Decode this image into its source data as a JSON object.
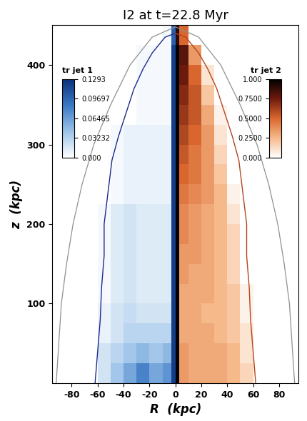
{
  "chart_data": {
    "type": "heatmap",
    "title": "I2 at t=22.8 Myr",
    "xlabel": "R  (kpc)",
    "ylabel": "z  (kpc)",
    "xlim": [
      -95,
      95
    ],
    "ylim": [
      0,
      450
    ],
    "xticks": [
      -80,
      -60,
      -40,
      -20,
      0,
      20,
      40,
      60,
      80
    ],
    "yticks": [
      100,
      200,
      300,
      400
    ],
    "z_edges": [
      0,
      25,
      50,
      75,
      100,
      125,
      150,
      175,
      200,
      225,
      250,
      275,
      300,
      325,
      350,
      375,
      400,
      425,
      450
    ],
    "tracers": [
      {
        "name": "tr jet 1",
        "R_edges": [
          -100,
          -80,
          -70,
          -60,
          -50,
          -40,
          -30,
          -20,
          -10,
          -3,
          0
        ],
        "colorbar_range": [
          0,
          0.1293
        ],
        "colorbar_ticks": [
          {
            "value": 0,
            "label": "0.000"
          },
          0.03232,
          0.06465,
          0.09697,
          0.1293
        ],
        "contour_color": "#1c2a8c",
        "contour": {
          "R": [
            0,
            -8,
            -18,
            -25,
            -32,
            -38,
            -44,
            -49,
            -52,
            -55,
            -55,
            -57,
            -58,
            -60,
            -62
          ],
          "z": [
            440,
            435,
            415,
            395,
            370,
            340,
            310,
            280,
            240,
            200,
            160,
            120,
            80,
            40,
            0
          ]
        },
        "cells": [
          [
            0,
            0,
            0,
            0.02,
            0.04,
            0.06,
            0.08,
            0.06,
            0.07,
            0.12
          ],
          [
            0,
            0,
            0,
            0.02,
            0.03,
            0.04,
            0.05,
            0.04,
            0.05,
            0.12
          ],
          [
            0,
            0,
            0,
            0.01,
            0.02,
            0.03,
            0.03,
            0.03,
            0.03,
            0.12
          ],
          [
            0,
            0,
            0,
            0.01,
            0.02,
            0.025,
            0.02,
            0.02,
            0.02,
            0.12
          ],
          [
            0,
            0,
            0,
            0.005,
            0.015,
            0.02,
            0.015,
            0.015,
            0.015,
            0.12
          ],
          [
            0,
            0,
            0,
            0.005,
            0.015,
            0.02,
            0.015,
            0.015,
            0.015,
            0.12
          ],
          [
            0,
            0,
            0,
            0.005,
            0.015,
            0.02,
            0.015,
            0.015,
            0.015,
            0.12
          ],
          [
            0,
            0,
            0,
            0.005,
            0.015,
            0.02,
            0.015,
            0.015,
            0.015,
            0.12
          ],
          [
            0,
            0,
            0,
            0.005,
            0.015,
            0.02,
            0.015,
            0.015,
            0.015,
            0.12
          ],
          [
            0,
            0,
            0,
            0,
            0.005,
            0.01,
            0.01,
            0.01,
            0.01,
            0.12
          ],
          [
            0,
            0,
            0,
            0,
            0.005,
            0.01,
            0.01,
            0.01,
            0.01,
            0.12
          ],
          [
            0,
            0,
            0,
            0,
            0.005,
            0.01,
            0.01,
            0.01,
            0.01,
            0.12
          ],
          [
            0,
            0,
            0,
            0,
            0.005,
            0.01,
            0.01,
            0.01,
            0.01,
            0.12
          ],
          [
            0,
            0,
            0,
            0,
            0,
            0,
            0.005,
            0.005,
            0.005,
            0.12
          ],
          [
            0,
            0,
            0,
            0,
            0,
            0,
            0.005,
            0.005,
            0.005,
            0.12
          ],
          [
            0,
            0,
            0,
            0,
            0,
            0,
            0.005,
            0.005,
            0.005,
            0.12
          ],
          [
            0,
            0,
            0,
            0,
            0,
            0,
            0.005,
            0.005,
            0.005,
            0.12
          ],
          [
            0,
            0,
            0,
            0,
            0,
            0,
            0,
            0,
            0.005,
            0.1
          ]
        ]
      },
      {
        "name": "tr jet 2",
        "R_edges": [
          0,
          3,
          10,
          20,
          30,
          40,
          50,
          60,
          70,
          80,
          100
        ],
        "colorbar_range": [
          0,
          1.0
        ],
        "colorbar_ticks": [
          {
            "value": 0,
            "label": "0.000"
          },
          {
            "value": 0.25,
            "label": "0.2500"
          },
          {
            "value": 0.5,
            "label": "0.5000"
          },
          {
            "value": 0.75,
            "label": "0.7500"
          },
          {
            "value": 1.0,
            "label": "1.000"
          }
        ],
        "contour_color": "#b5451b",
        "contour": {
          "R": [
            0,
            8,
            18,
            25,
            32,
            38,
            44,
            49,
            52,
            55,
            55,
            57,
            58,
            60,
            62
          ],
          "z": [
            440,
            435,
            415,
            395,
            370,
            340,
            310,
            280,
            240,
            200,
            160,
            120,
            80,
            40,
            0
          ]
        },
        "cells": [
          [
            1.0,
            0.35,
            0.3,
            0.3,
            0.3,
            0.25,
            0.15,
            0,
            0,
            0
          ],
          [
            1.0,
            0.35,
            0.3,
            0.3,
            0.3,
            0.25,
            0.1,
            0,
            0,
            0
          ],
          [
            1.0,
            0.3,
            0.3,
            0.3,
            0.25,
            0.2,
            0.1,
            0,
            0,
            0
          ],
          [
            1.0,
            0.3,
            0.3,
            0.25,
            0.25,
            0.2,
            0.05,
            0,
            0,
            0
          ],
          [
            1.0,
            0.3,
            0.3,
            0.3,
            0.25,
            0.2,
            0.05,
            0,
            0,
            0
          ],
          [
            1.0,
            0.35,
            0.3,
            0.3,
            0.25,
            0.15,
            0,
            0,
            0,
            0
          ],
          [
            1.0,
            0.35,
            0.35,
            0.3,
            0.25,
            0.15,
            0,
            0,
            0,
            0
          ],
          [
            1.0,
            0.4,
            0.35,
            0.3,
            0.25,
            0.15,
            0,
            0,
            0,
            0
          ],
          [
            1.0,
            0.4,
            0.35,
            0.3,
            0.25,
            0.1,
            0,
            0,
            0,
            0
          ],
          [
            1.0,
            0.45,
            0.4,
            0.35,
            0.25,
            0.05,
            0,
            0,
            0,
            0
          ],
          [
            1.0,
            0.5,
            0.45,
            0.35,
            0.2,
            0,
            0,
            0,
            0,
            0
          ],
          [
            1.0,
            0.55,
            0.45,
            0.35,
            0.15,
            0,
            0,
            0,
            0,
            0
          ],
          [
            1.0,
            0.6,
            0.5,
            0.35,
            0.1,
            0,
            0,
            0,
            0,
            0
          ],
          [
            1.0,
            0.65,
            0.55,
            0.3,
            0.05,
            0,
            0,
            0,
            0,
            0
          ],
          [
            1.0,
            0.7,
            0.55,
            0.2,
            0,
            0,
            0,
            0,
            0,
            0
          ],
          [
            1.0,
            0.75,
            0.5,
            0.1,
            0,
            0,
            0,
            0,
            0,
            0
          ],
          [
            1.0,
            0.8,
            0.35,
            0,
            0,
            0,
            0,
            0,
            0,
            0
          ],
          [
            0.9,
            0.5,
            0,
            0,
            0,
            0,
            0,
            0,
            0,
            0
          ]
        ]
      }
    ],
    "bow_shock": {
      "color": "#909090",
      "R": [
        -92,
        -90,
        -88,
        -84,
        -79,
        -72,
        -63,
        -50,
        -35,
        -18,
        0,
        18,
        35,
        50,
        63,
        72,
        79,
        84,
        88,
        90,
        92
      ],
      "z": [
        0,
        50,
        100,
        150,
        200,
        250,
        300,
        350,
        400,
        435,
        448,
        435,
        400,
        350,
        300,
        250,
        200,
        150,
        100,
        50,
        0
      ]
    }
  }
}
